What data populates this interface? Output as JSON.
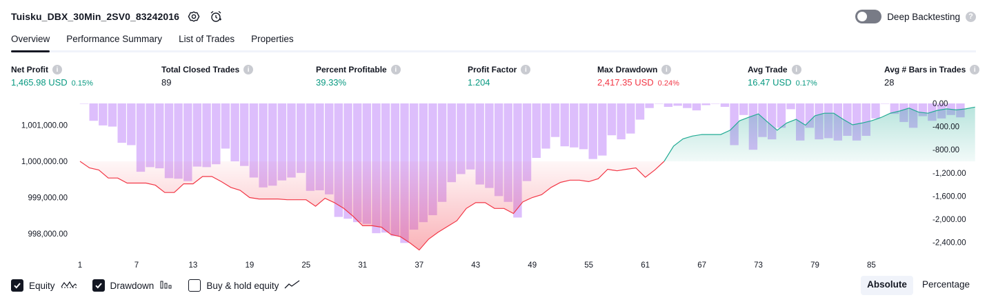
{
  "header": {
    "strategy_name": "Tuisku_DBX_30Min_2SV0_83242016",
    "deep_backtesting_label": "Deep Backtesting"
  },
  "tabs": [
    {
      "label": "Overview",
      "active": true
    },
    {
      "label": "Performance Summary",
      "active": false
    },
    {
      "label": "List of Trades",
      "active": false
    },
    {
      "label": "Properties",
      "active": false
    }
  ],
  "metrics": {
    "net_profit": {
      "label": "Net Profit",
      "value": "1,465.98 USD",
      "pct": "0.15%"
    },
    "total_closed_trades": {
      "label": "Total Closed Trades",
      "value": "89"
    },
    "percent_profitable": {
      "label": "Percent Profitable",
      "value": "39.33%"
    },
    "profit_factor": {
      "label": "Profit Factor",
      "value": "1.204"
    },
    "max_drawdown": {
      "label": "Max Drawdown",
      "value": "2,417.35 USD",
      "pct": "0.24%"
    },
    "avg_trade": {
      "label": "Avg Trade",
      "value": "16.47 USD",
      "pct": "0.17%"
    },
    "avg_bars": {
      "label": "Avg # Bars in Trades",
      "value": "28"
    }
  },
  "colors": {
    "positive": "#089981",
    "negative": "#f23645",
    "drawdown_bar": "#d7b3fb",
    "equity_below": "#f23645",
    "equity_above": "#22ab94"
  },
  "footer": {
    "equity_label": "Equity",
    "drawdown_label": "Drawdown",
    "buy_hold_label": "Buy & hold equity",
    "equity_checked": true,
    "drawdown_checked": true,
    "buy_hold_checked": false,
    "absolute_label": "Absolute",
    "percentage_label": "Percentage",
    "mode": "Absolute"
  },
  "chart_data": {
    "type": "line",
    "x_ticks": [
      "1",
      "7",
      "13",
      "19",
      "25",
      "31",
      "37",
      "43",
      "49",
      "55",
      "61",
      "67",
      "73",
      "79",
      "85"
    ],
    "left_axis_ticks": [
      "1,001,000.00",
      "1,000,000.00",
      "999,000.00",
      "998,000.00"
    ],
    "right_axis_ticks": [
      "0.00",
      "-400.00",
      "-800.00",
      "-1,200.00",
      "-1,600.00",
      "-2,000.00",
      "-2,400.00"
    ],
    "left_ylim": [
      997600,
      1001600
    ],
    "right_ylim": [
      -2500,
      0
    ],
    "baseline": 1000000,
    "series": [
      {
        "name": "Equity",
        "values": [
          1000000,
          999820,
          999760,
          999540,
          999540,
          999400,
          999400,
          999400,
          999340,
          999140,
          999140,
          999380,
          999380,
          999580,
          999580,
          999440,
          999280,
          999200,
          999000,
          998960,
          998960,
          998960,
          998940,
          998940,
          998940,
          998760,
          998980,
          998860,
          998700,
          998480,
          998220,
          998220,
          998180,
          997980,
          997920,
          997750,
          997550,
          997850,
          998040,
          998200,
          998360,
          998700,
          998860,
          998860,
          998700,
          998700,
          998560,
          998880,
          999000,
          999080,
          999280,
          999420,
          999480,
          999480,
          999440,
          999520,
          999780,
          999740,
          999780,
          999820,
          999560,
          999760,
          1000000,
          1000420,
          1000620,
          1000700,
          1000740,
          1000740,
          1000740,
          1000860,
          1001120,
          1001220,
          1001310,
          1001080,
          1000860,
          1001060,
          1001160,
          1001000,
          1001260,
          1001330,
          1001330,
          1001160,
          1001010,
          1001060,
          1001120,
          1001210,
          1001330,
          1001390,
          1001470,
          1001360,
          1001330,
          1001410,
          1001450,
          1001420,
          1001450,
          1001500
        ]
      },
      {
        "name": "Drawdown",
        "values": [
          0,
          -300,
          -380,
          -400,
          -680,
          -720,
          -1180,
          -1100,
          -1120,
          -1290,
          -1300,
          -1340,
          -1090,
          -1100,
          -1050,
          -780,
          -1000,
          -1080,
          -1280,
          -1450,
          -1420,
          -1330,
          -1280,
          -1200,
          -1510,
          -1500,
          -1570,
          -1960,
          -1990,
          -2050,
          -2080,
          -2240,
          -2230,
          -2290,
          -2410,
          -2180,
          -2050,
          -1930,
          -1700,
          -1360,
          -1220,
          -1140,
          -1400,
          -1460,
          -1600,
          -1700,
          -1970,
          -1340,
          -940,
          -780,
          -580,
          -740,
          -760,
          -790,
          -960,
          -900,
          -550,
          -620,
          -520,
          -280,
          -80,
          0,
          -60,
          -40,
          -80,
          -120,
          -30,
          0,
          -60,
          -720,
          -200,
          -800,
          -580,
          -620,
          -420,
          -100,
          -640,
          -420,
          -620,
          -600,
          -640,
          -560,
          -640,
          -560,
          -260,
          0,
          -180,
          -320,
          -420,
          -220,
          -300,
          -260,
          -200,
          -240
        ]
      }
    ]
  }
}
